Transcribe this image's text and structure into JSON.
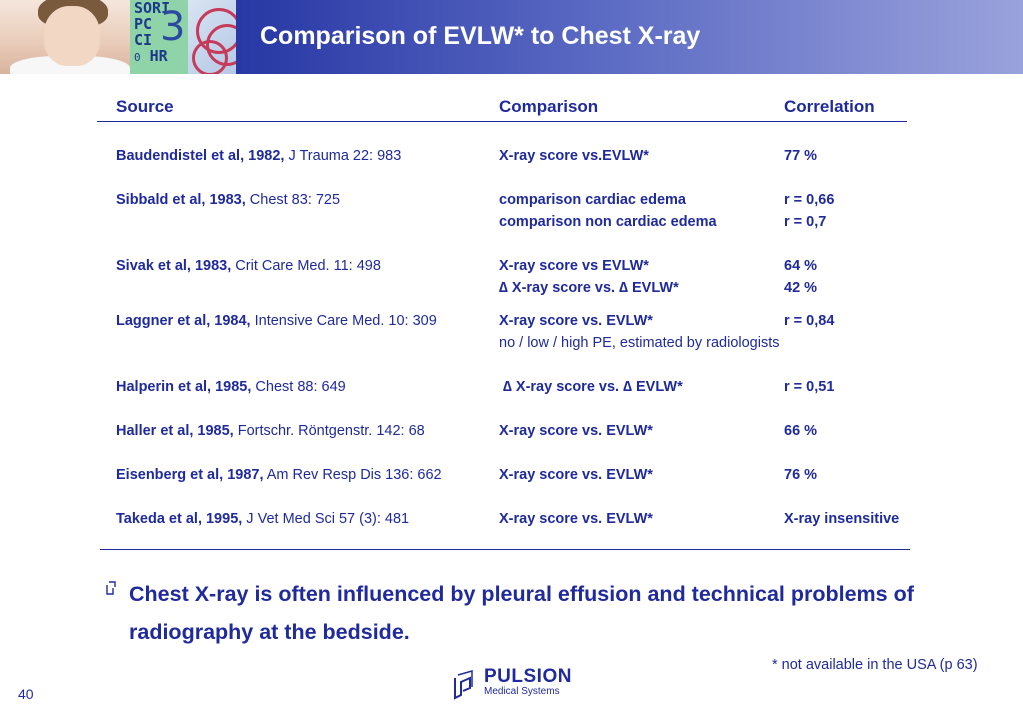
{
  "header": {
    "title": "Comparison of EVLW* to Chest X-ray",
    "monitor_lines": [
      "SORI",
      "PC",
      "CI",
      "HR"
    ],
    "monitor_digit": "0",
    "monitor_big": "3"
  },
  "table": {
    "headers": {
      "source": "Source",
      "comparison": "Comparison",
      "correlation": "Correlation"
    },
    "rows": [
      {
        "author": "Baudendistel et al, 1982,",
        "ref": " J Trauma 22: 983",
        "comparison": [
          "X-ray score vs.EVLW*"
        ],
        "correlation": [
          "77 %"
        ]
      },
      {
        "author": "Sibbald et al, 1983,",
        "ref": " Chest 83: 725",
        "comparison": [
          "comparison cardiac edema",
          "comparison non cardiac edema"
        ],
        "correlation": [
          "r = 0,66",
          "r = 0,7"
        ]
      },
      {
        "author": "Sivak et al, 1983,",
        "ref": " Crit Care Med. 11: 498",
        "comparison": [
          "X-ray score vs EVLW*",
          "∆ X-ray score vs. ∆ EVLW*"
        ],
        "correlation": [
          "64 %",
          "42 %"
        ]
      },
      {
        "author": "Laggner et al, 1984,",
        "ref": " Intensive Care Med. 10: 309",
        "comparison": [
          "X-ray score vs. EVLW*",
          "no / low / high PE, estimated by radiologists"
        ],
        "correlation": [
          "r = 0,84"
        ]
      },
      {
        "author": "Halperin et al, 1985,",
        "ref": " Chest 88: 649",
        "comparison": [
          "∆ X-ray score vs. ∆ EVLW*"
        ],
        "correlation": [
          "r = 0,51"
        ]
      },
      {
        "author": "Haller et al, 1985,",
        "ref": " Fortschr. Röntgenstr. 142: 68",
        "comparison": [
          "X-ray score vs. EVLW*"
        ],
        "correlation": [
          "66 %"
        ]
      },
      {
        "author": "Eisenberg et al, 1987,",
        "ref": " Am Rev Resp Dis 136: 662",
        "comparison": [
          "X-ray score vs. EVLW*"
        ],
        "correlation": [
          "76 %"
        ]
      },
      {
        "author": "Takeda et al, 1995,",
        "ref": " J Vet Med Sci 57 (3): 481",
        "comparison": [
          "X-ray score vs. EVLW*"
        ],
        "correlation": [
          "X-ray insensitive"
        ]
      }
    ]
  },
  "bullet": "Chest X-ray is often influenced by pleural effusion and technical problems of radiography at the bedside.",
  "footnote": "* not available in the USA (p 63)",
  "page_number": "40",
  "logo": {
    "name": "PULSION",
    "subtitle": "Medical Systems"
  },
  "colors": {
    "text": "#1f2a9c",
    "header_dark": "#1a2a8c",
    "header_light": "#9aa2dc"
  }
}
